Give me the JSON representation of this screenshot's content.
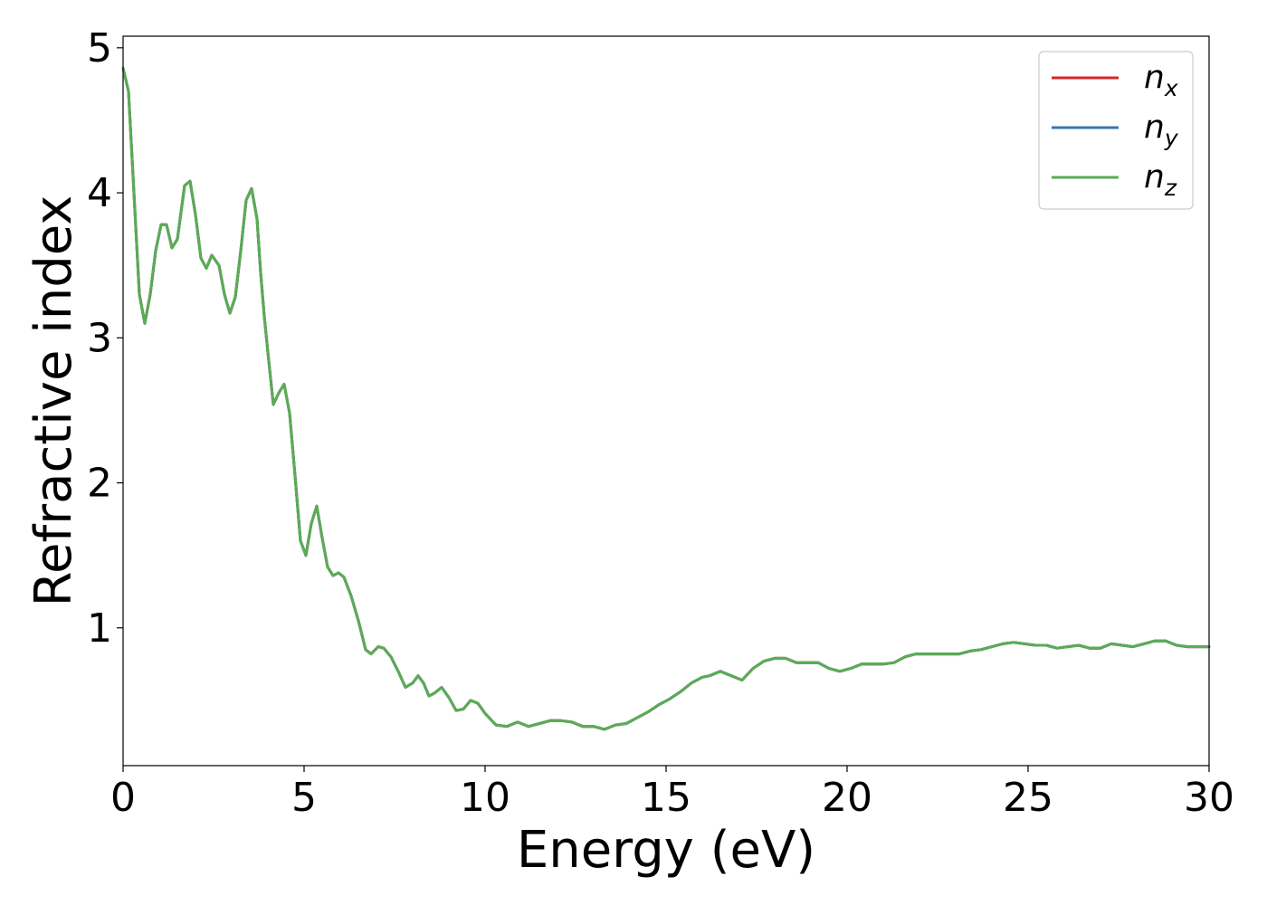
{
  "chart_data": {
    "type": "line",
    "title": "",
    "xlabel": "Energy (eV)",
    "ylabel": "Refractive index",
    "xlim": [
      0,
      30
    ],
    "ylim": [
      0.05,
      5.08
    ],
    "xticks": [
      0,
      5,
      10,
      15,
      20,
      25,
      30
    ],
    "yticks": [
      1,
      2,
      3,
      4,
      5
    ],
    "grid": false,
    "legend_position": "top-right",
    "x": [
      0,
      0.15,
      0.3,
      0.45,
      0.6,
      0.75,
      0.9,
      1.05,
      1.2,
      1.35,
      1.5,
      1.7,
      1.85,
      2.0,
      2.15,
      2.3,
      2.45,
      2.65,
      2.8,
      2.95,
      3.1,
      3.25,
      3.4,
      3.55,
      3.7,
      3.8,
      3.9,
      4.0,
      4.15,
      4.3,
      4.45,
      4.6,
      4.75,
      4.9,
      5.05,
      5.2,
      5.35,
      5.5,
      5.65,
      5.8,
      5.95,
      6.1,
      6.3,
      6.5,
      6.7,
      6.85,
      7.05,
      7.2,
      7.4,
      7.6,
      7.8,
      8.0,
      8.15,
      8.3,
      8.45,
      8.6,
      8.8,
      9.0,
      9.2,
      9.4,
      9.6,
      9.8,
      10.0,
      10.3,
      10.6,
      10.9,
      11.2,
      11.5,
      11.8,
      12.1,
      12.4,
      12.7,
      13.0,
      13.3,
      13.6,
      13.9,
      14.2,
      14.5,
      14.8,
      15.1,
      15.4,
      15.7,
      16.0,
      16.2,
      16.5,
      16.8,
      17.1,
      17.4,
      17.7,
      18.0,
      18.3,
      18.6,
      18.9,
      19.2,
      19.5,
      19.8,
      20.1,
      20.4,
      20.7,
      21.0,
      21.3,
      21.6,
      21.9,
      22.2,
      22.5,
      22.8,
      23.1,
      23.4,
      23.7,
      24.0,
      24.3,
      24.6,
      24.9,
      25.2,
      25.5,
      25.8,
      26.1,
      26.4,
      26.7,
      27.0,
      27.3,
      27.6,
      27.9,
      28.2,
      28.5,
      28.8,
      29.1,
      29.4,
      29.7,
      30.0
    ],
    "series": [
      {
        "name": "n_x",
        "label_main": "n",
        "label_sub": "x",
        "color": "#d62728",
        "values": [
          4.86,
          4.7,
          4.0,
          3.3,
          3.1,
          3.3,
          3.6,
          3.78,
          3.78,
          3.62,
          3.68,
          4.05,
          4.08,
          3.85,
          3.55,
          3.48,
          3.57,
          3.5,
          3.3,
          3.17,
          3.28,
          3.6,
          3.95,
          4.03,
          3.82,
          3.45,
          3.15,
          2.9,
          2.54,
          2.62,
          2.68,
          2.48,
          2.05,
          1.6,
          1.5,
          1.72,
          1.84,
          1.62,
          1.42,
          1.36,
          1.38,
          1.35,
          1.22,
          1.05,
          0.85,
          0.82,
          0.87,
          0.86,
          0.8,
          0.7,
          0.59,
          0.62,
          0.67,
          0.62,
          0.53,
          0.55,
          0.59,
          0.52,
          0.43,
          0.44,
          0.5,
          0.48,
          0.41,
          0.33,
          0.32,
          0.35,
          0.32,
          0.34,
          0.36,
          0.36,
          0.35,
          0.32,
          0.32,
          0.3,
          0.33,
          0.34,
          0.38,
          0.42,
          0.47,
          0.51,
          0.56,
          0.62,
          0.66,
          0.67,
          0.7,
          0.67,
          0.64,
          0.72,
          0.77,
          0.79,
          0.79,
          0.76,
          0.76,
          0.76,
          0.72,
          0.7,
          0.72,
          0.75,
          0.75,
          0.75,
          0.76,
          0.8,
          0.82,
          0.82,
          0.82,
          0.82,
          0.82,
          0.84,
          0.85,
          0.87,
          0.89,
          0.9,
          0.89,
          0.88,
          0.88,
          0.86,
          0.87,
          0.88,
          0.86,
          0.86,
          0.89,
          0.88,
          0.87,
          0.89,
          0.91,
          0.91,
          0.88,
          0.87,
          0.87,
          0.87
        ]
      },
      {
        "name": "n_y",
        "label_main": "n",
        "label_sub": "y",
        "color": "#3b75af",
        "values": [
          4.86,
          4.7,
          4.0,
          3.3,
          3.1,
          3.3,
          3.6,
          3.78,
          3.78,
          3.62,
          3.68,
          4.05,
          4.08,
          3.85,
          3.55,
          3.48,
          3.57,
          3.5,
          3.3,
          3.17,
          3.28,
          3.6,
          3.95,
          4.03,
          3.82,
          3.45,
          3.15,
          2.9,
          2.54,
          2.62,
          2.68,
          2.48,
          2.05,
          1.6,
          1.5,
          1.72,
          1.84,
          1.62,
          1.42,
          1.36,
          1.38,
          1.35,
          1.22,
          1.05,
          0.85,
          0.82,
          0.87,
          0.86,
          0.8,
          0.7,
          0.59,
          0.62,
          0.67,
          0.62,
          0.53,
          0.55,
          0.59,
          0.52,
          0.43,
          0.44,
          0.5,
          0.48,
          0.41,
          0.33,
          0.32,
          0.35,
          0.32,
          0.34,
          0.36,
          0.36,
          0.35,
          0.32,
          0.32,
          0.3,
          0.33,
          0.34,
          0.38,
          0.42,
          0.47,
          0.51,
          0.56,
          0.62,
          0.66,
          0.67,
          0.7,
          0.67,
          0.64,
          0.72,
          0.77,
          0.79,
          0.79,
          0.76,
          0.76,
          0.76,
          0.72,
          0.7,
          0.72,
          0.75,
          0.75,
          0.75,
          0.76,
          0.8,
          0.82,
          0.82,
          0.82,
          0.82,
          0.82,
          0.84,
          0.85,
          0.87,
          0.89,
          0.9,
          0.89,
          0.88,
          0.88,
          0.86,
          0.87,
          0.88,
          0.86,
          0.86,
          0.89,
          0.88,
          0.87,
          0.89,
          0.91,
          0.91,
          0.88,
          0.87,
          0.87,
          0.87
        ]
      },
      {
        "name": "n_z",
        "label_main": "n",
        "label_sub": "z",
        "color": "#5aac54",
        "values": [
          4.86,
          4.7,
          4.0,
          3.3,
          3.1,
          3.3,
          3.6,
          3.78,
          3.78,
          3.62,
          3.68,
          4.05,
          4.08,
          3.85,
          3.55,
          3.48,
          3.57,
          3.5,
          3.3,
          3.17,
          3.28,
          3.6,
          3.95,
          4.03,
          3.82,
          3.45,
          3.15,
          2.9,
          2.54,
          2.62,
          2.68,
          2.48,
          2.05,
          1.6,
          1.5,
          1.72,
          1.84,
          1.62,
          1.42,
          1.36,
          1.38,
          1.35,
          1.22,
          1.05,
          0.85,
          0.82,
          0.87,
          0.86,
          0.8,
          0.7,
          0.59,
          0.62,
          0.67,
          0.62,
          0.53,
          0.55,
          0.59,
          0.52,
          0.43,
          0.44,
          0.5,
          0.48,
          0.41,
          0.33,
          0.32,
          0.35,
          0.32,
          0.34,
          0.36,
          0.36,
          0.35,
          0.32,
          0.32,
          0.3,
          0.33,
          0.34,
          0.38,
          0.42,
          0.47,
          0.51,
          0.56,
          0.62,
          0.66,
          0.67,
          0.7,
          0.67,
          0.64,
          0.72,
          0.77,
          0.79,
          0.79,
          0.76,
          0.76,
          0.76,
          0.72,
          0.7,
          0.72,
          0.75,
          0.75,
          0.75,
          0.76,
          0.8,
          0.82,
          0.82,
          0.82,
          0.82,
          0.82,
          0.84,
          0.85,
          0.87,
          0.89,
          0.9,
          0.89,
          0.88,
          0.88,
          0.86,
          0.87,
          0.88,
          0.86,
          0.86,
          0.89,
          0.88,
          0.87,
          0.89,
          0.91,
          0.91,
          0.88,
          0.87,
          0.87,
          0.87
        ]
      }
    ]
  }
}
